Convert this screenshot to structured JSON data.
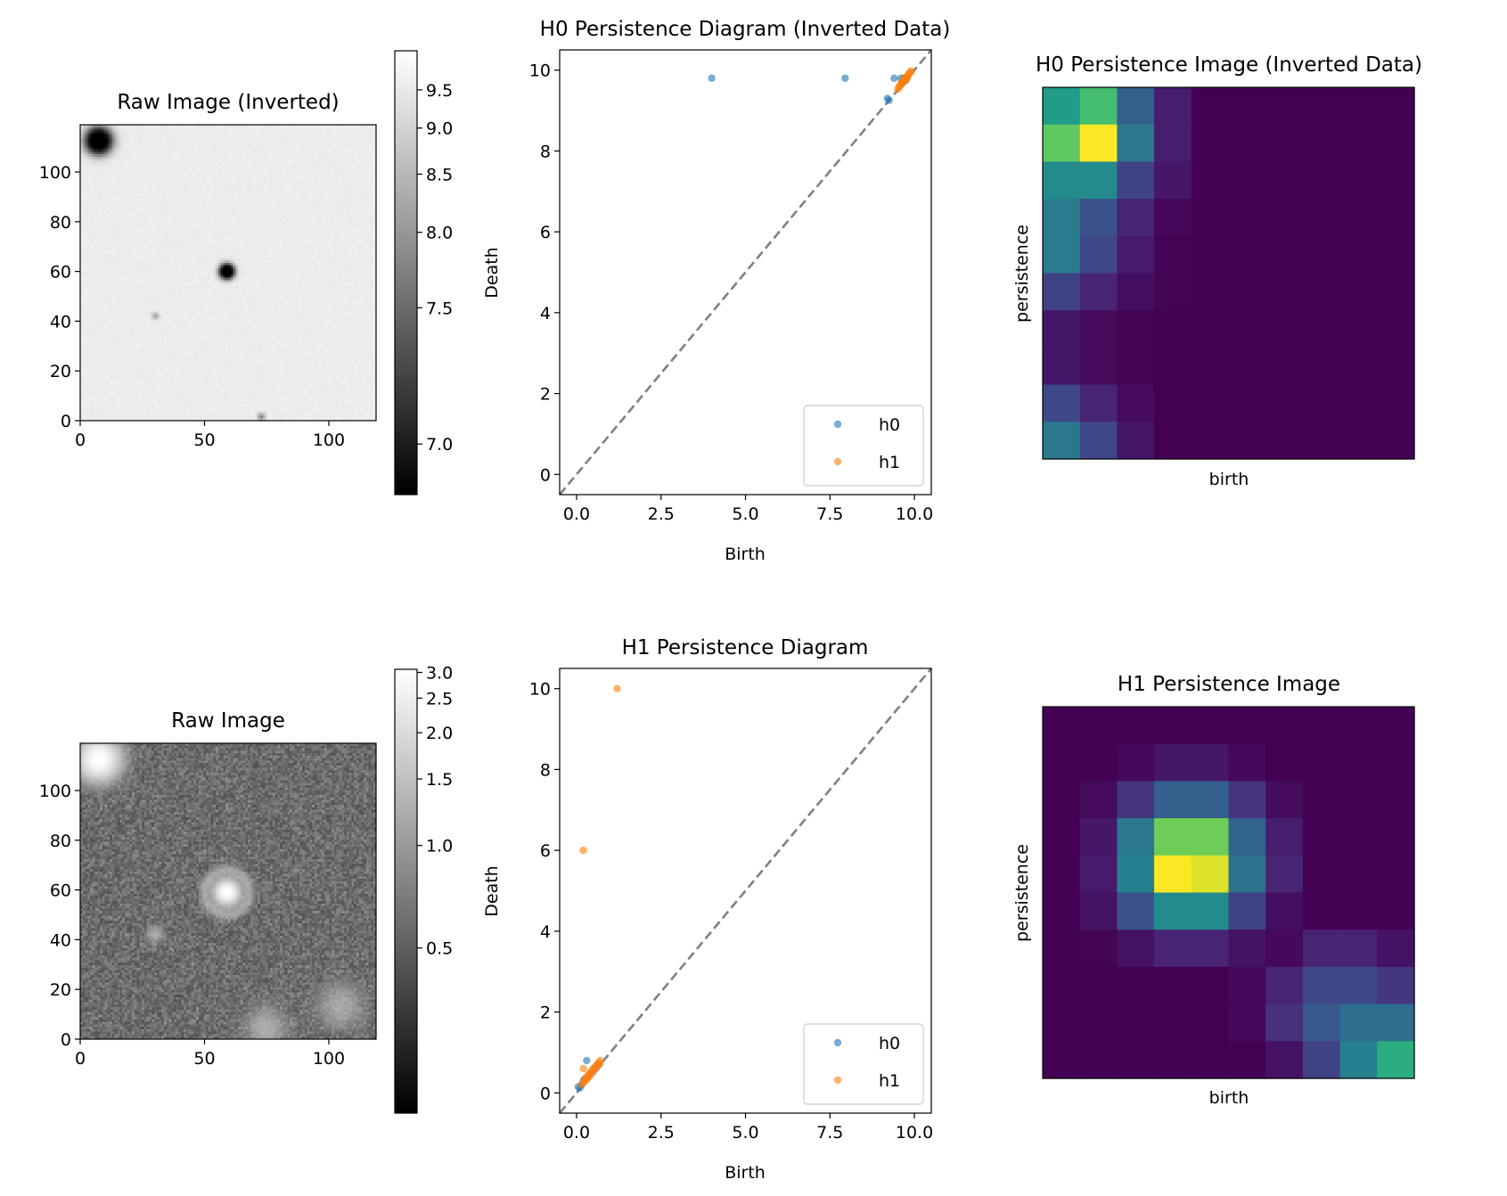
{
  "figure": {
    "background": "#ffffff",
    "colors": {
      "h0": "#1f77b4",
      "h1": "#ff7f0e",
      "diagonal": "#808080",
      "frame": "#000000"
    }
  },
  "chart_data": [
    {
      "id": "raw_inverted",
      "type": "heatmap",
      "title": "Raw Image (Inverted)",
      "xlim": [
        0,
        119
      ],
      "ylim": [
        0,
        119
      ],
      "xticks": [
        0,
        50,
        100
      ],
      "yticks": [
        0,
        20,
        40,
        60,
        80,
        100
      ],
      "colormap": "gray",
      "background_value": 9.7,
      "sources": [
        {
          "x": 7,
          "y": 113,
          "value": 6.9,
          "radius": 3.2
        },
        {
          "x": 59,
          "y": 60,
          "value": 6.9,
          "radius": 1.8
        },
        {
          "x": 73,
          "y": 1,
          "value": 9.2,
          "radius": 1.0
        },
        {
          "x": 30,
          "y": 42,
          "value": 9.4,
          "radius": 1.0
        }
      ],
      "colorbar": {
        "ticks": [
          7.0,
          7.5,
          8.0,
          8.5,
          9.0,
          9.5
        ],
        "range": [
          6.86,
          9.8
        ],
        "tick_positions": [
          0.114,
          0.421,
          0.591,
          0.722,
          0.826,
          0.912
        ]
      }
    },
    {
      "id": "h0_diagram",
      "type": "scatter",
      "title": "H0 Persistence Diagram (Inverted Data)",
      "xlabel": "Birth",
      "ylabel": "Death",
      "xlim": [
        -0.5,
        10.5
      ],
      "ylim": [
        -0.5,
        10.5
      ],
      "xticks": [
        "0.0",
        "2.5",
        "5.0",
        "7.5",
        "10.0"
      ],
      "yticks": [
        "0",
        "2",
        "4",
        "6",
        "8",
        "10"
      ],
      "diagonal": true,
      "legend": {
        "placement": "lower right",
        "entries": [
          "h0",
          "h1"
        ]
      },
      "series": [
        {
          "name": "h0",
          "x": [
            4.0,
            7.95,
            9.4,
            9.2,
            9.25,
            9.6,
            9.7,
            9.65,
            9.75
          ],
          "y": [
            9.8,
            9.8,
            9.8,
            9.3,
            9.25,
            9.8,
            9.8,
            9.7,
            9.75
          ]
        },
        {
          "name": "h1",
          "x": [
            9.5,
            9.55,
            9.6,
            9.62,
            9.65,
            9.68,
            9.7,
            9.72,
            9.75,
            9.78,
            9.8,
            9.82,
            9.85,
            9.9,
            9.55,
            9.6,
            9.7,
            9.8,
            9.9,
            9.75
          ],
          "y": [
            9.52,
            9.6,
            9.65,
            9.7,
            9.68,
            9.75,
            9.8,
            9.74,
            9.82,
            9.8,
            9.85,
            9.9,
            9.92,
            9.95,
            9.58,
            9.63,
            9.72,
            9.83,
            9.98,
            9.77
          ]
        }
      ]
    },
    {
      "id": "h0_image",
      "type": "heatmap",
      "title": "H0 Persistence Image (Inverted Data)",
      "xlabel": "birth",
      "ylabel": "persistence",
      "colormap": "viridis",
      "vmax": 1.0,
      "rows_top_to_bottom": [
        [
          0.55,
          0.7,
          0.3,
          0.08,
          0,
          0,
          0,
          0,
          0,
          0
        ],
        [
          0.75,
          1.0,
          0.4,
          0.08,
          0,
          0,
          0,
          0,
          0,
          0
        ],
        [
          0.48,
          0.48,
          0.2,
          0.06,
          0,
          0,
          0,
          0,
          0,
          0
        ],
        [
          0.42,
          0.25,
          0.1,
          0.02,
          0,
          0,
          0,
          0,
          0,
          0
        ],
        [
          0.42,
          0.22,
          0.07,
          0.01,
          0,
          0,
          0,
          0,
          0,
          0
        ],
        [
          0.2,
          0.1,
          0.04,
          0.01,
          0,
          0,
          0,
          0,
          0,
          0
        ],
        [
          0.06,
          0.03,
          0.01,
          0,
          0,
          0,
          0,
          0,
          0,
          0
        ],
        [
          0.06,
          0.03,
          0.01,
          0,
          0,
          0,
          0,
          0,
          0,
          0
        ],
        [
          0.22,
          0.1,
          0.03,
          0,
          0,
          0,
          0,
          0,
          0,
          0
        ],
        [
          0.4,
          0.22,
          0.06,
          0,
          0,
          0,
          0,
          0,
          0,
          0
        ]
      ]
    },
    {
      "id": "raw",
      "type": "heatmap",
      "title": "Raw Image",
      "xlim": [
        0,
        119
      ],
      "ylim": [
        0,
        119
      ],
      "xticks": [
        0,
        50,
        100
      ],
      "yticks": [
        0,
        20,
        40,
        60,
        80,
        100
      ],
      "colormap": "gray",
      "background_value": 0.1,
      "noise": 0.12,
      "sources": [
        {
          "x": 7,
          "y": 113,
          "value": 3.0,
          "radius": 5.0
        },
        {
          "x": 59,
          "y": 59,
          "value": 3.0,
          "radius": 3.0,
          "halo": 9.0
        },
        {
          "x": 30,
          "y": 42,
          "value": 0.45,
          "radius": 2.0
        },
        {
          "x": 75,
          "y": 4,
          "value": 0.45,
          "radius": 5.0
        },
        {
          "x": 105,
          "y": 13,
          "value": 0.4,
          "radius": 5.5
        }
      ],
      "colorbar": {
        "ticks": [
          0.5,
          1.0,
          1.5,
          2.0,
          2.5,
          3.0
        ],
        "range": [
          0.02,
          3.1
        ],
        "tick_positions": [
          0.372,
          0.603,
          0.753,
          0.857,
          0.935,
          0.993
        ]
      }
    },
    {
      "id": "h1_diagram",
      "type": "scatter",
      "title": "H1 Persistence Diagram",
      "xlabel": "Birth",
      "ylabel": "Death",
      "xlim": [
        -0.5,
        10.5
      ],
      "ylim": [
        -0.5,
        10.5
      ],
      "xticks": [
        "0.0",
        "2.5",
        "5.0",
        "7.5",
        "10.0"
      ],
      "yticks": [
        "0",
        "2",
        "4",
        "6",
        "8",
        "10"
      ],
      "diagonal": true,
      "legend": {
        "placement": "lower right",
        "entries": [
          "h0",
          "h1"
        ]
      },
      "series": [
        {
          "name": "h0",
          "x": [
            0.05,
            0.1,
            0.15,
            0.3,
            0.2,
            0.25,
            0.45,
            0.55,
            0.65
          ],
          "y": [
            0.15,
            0.12,
            0.2,
            0.8,
            0.3,
            0.35,
            0.5,
            0.6,
            0.7
          ]
        },
        {
          "name": "h1",
          "x": [
            1.2,
            0.2,
            0.2,
            0.25,
            0.3,
            0.35,
            0.4,
            0.45,
            0.5,
            0.55,
            0.6,
            0.65,
            0.7,
            0.15,
            0.2,
            0.3,
            0.4,
            0.5,
            0.6,
            0.7,
            0.25,
            0.35
          ],
          "y": [
            10.0,
            6.0,
            0.6,
            0.35,
            0.4,
            0.45,
            0.5,
            0.55,
            0.6,
            0.65,
            0.7,
            0.75,
            0.8,
            0.2,
            0.25,
            0.33,
            0.42,
            0.52,
            0.62,
            0.72,
            0.3,
            0.38
          ]
        }
      ]
    },
    {
      "id": "h1_image",
      "type": "heatmap",
      "title": "H1 Persistence Image",
      "xlabel": "birth",
      "ylabel": "persistence",
      "colormap": "viridis",
      "vmax": 1.0,
      "rows_top_to_bottom": [
        [
          0,
          0,
          0,
          0,
          0,
          0,
          0,
          0,
          0,
          0
        ],
        [
          0,
          0,
          0.02,
          0.06,
          0.06,
          0.02,
          0,
          0,
          0,
          0
        ],
        [
          0,
          0.03,
          0.15,
          0.3,
          0.3,
          0.15,
          0.03,
          0,
          0,
          0
        ],
        [
          0,
          0.06,
          0.4,
          0.78,
          0.78,
          0.32,
          0.08,
          0,
          0,
          0
        ],
        [
          0,
          0.07,
          0.44,
          1.0,
          0.95,
          0.38,
          0.1,
          0,
          0,
          0
        ],
        [
          0,
          0.05,
          0.25,
          0.48,
          0.48,
          0.2,
          0.04,
          0,
          0,
          0
        ],
        [
          0,
          0.01,
          0.05,
          0.1,
          0.1,
          0.05,
          0.02,
          0.1,
          0.1,
          0.05
        ],
        [
          0,
          0,
          0,
          0,
          0,
          0.02,
          0.1,
          0.22,
          0.22,
          0.16
        ],
        [
          0,
          0,
          0,
          0,
          0,
          0.02,
          0.14,
          0.28,
          0.36,
          0.36
        ],
        [
          0,
          0,
          0,
          0,
          0,
          0,
          0.05,
          0.2,
          0.44,
          0.62
        ]
      ]
    }
  ]
}
